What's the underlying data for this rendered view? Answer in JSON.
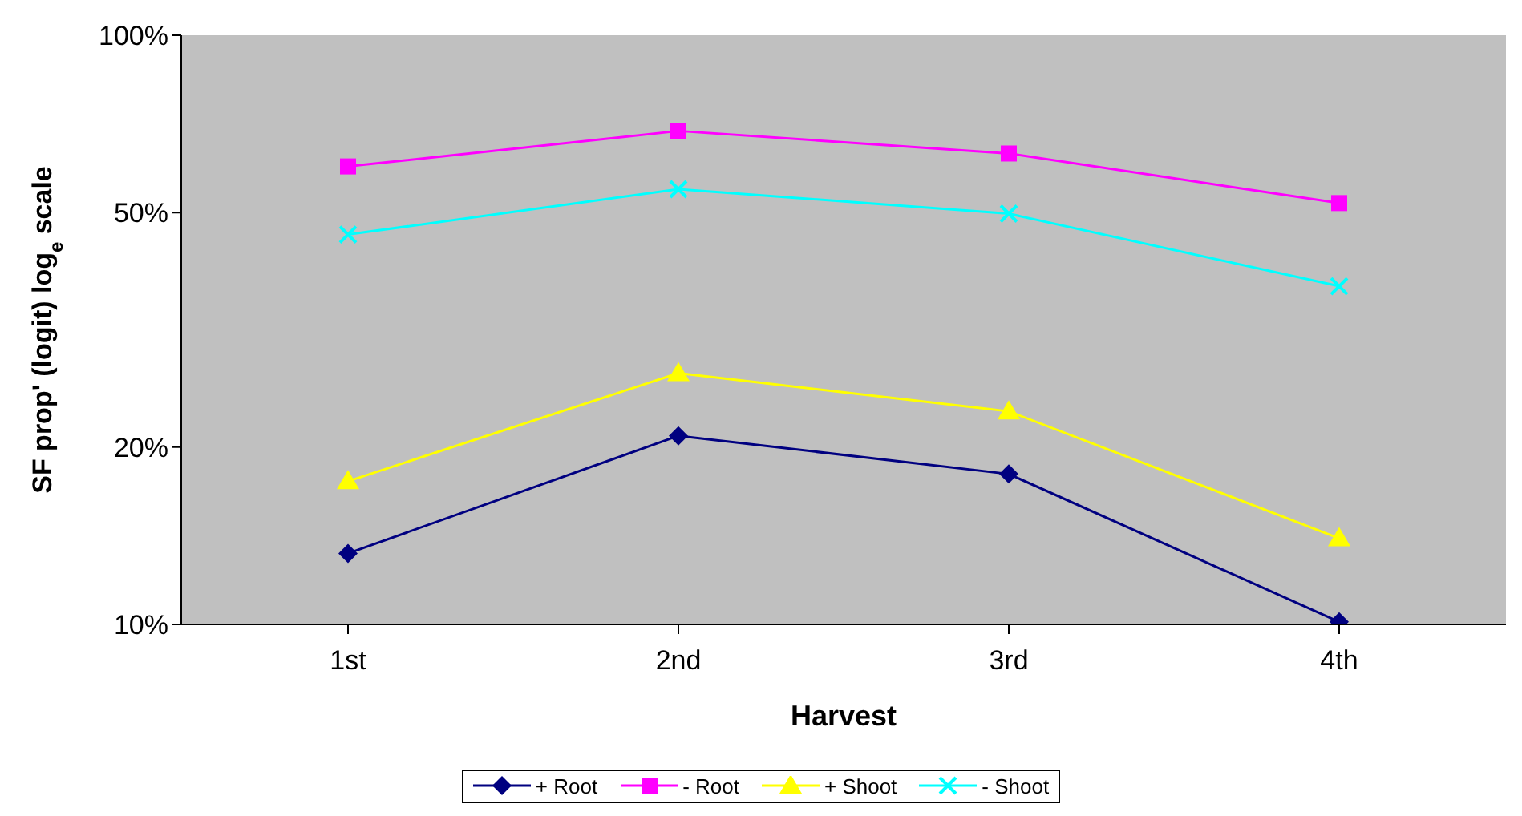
{
  "chart_data": {
    "type": "line",
    "xlabel": "Harvest",
    "ylabel": "SF prop' (logit) log$_{e}$ scale",
    "categories": [
      "1st",
      "2nd",
      "3rd",
      "4th"
    ],
    "series": [
      {
        "name": "+ Root",
        "color": "#000080",
        "marker": "diamond",
        "values": [
          13.2,
          20.9,
          18.0,
          10.1
        ]
      },
      {
        "name": "- Root",
        "color": "#ff00ff",
        "marker": "square",
        "values": [
          59.9,
          68.8,
          63.0,
          51.9
        ]
      },
      {
        "name": "+ Shoot",
        "color": "#ffff00",
        "marker": "triangle",
        "values": [
          17.5,
          26.7,
          23.0,
          14.0
        ]
      },
      {
        "name": "- Shoot",
        "color": "#00ffff",
        "marker": "cross",
        "values": [
          45.9,
          54.8,
          49.8,
          37.5
        ]
      }
    ],
    "log": "y",
    "ylim": [
      10,
      100
    ],
    "yticks": [
      {
        "value": 10,
        "label": "10%"
      },
      {
        "value": 20,
        "label": "20%"
      },
      {
        "value": 50,
        "label": "50%"
      },
      {
        "value": 100,
        "label": "100%"
      }
    ],
    "grid": false,
    "legend": "bottom"
  }
}
